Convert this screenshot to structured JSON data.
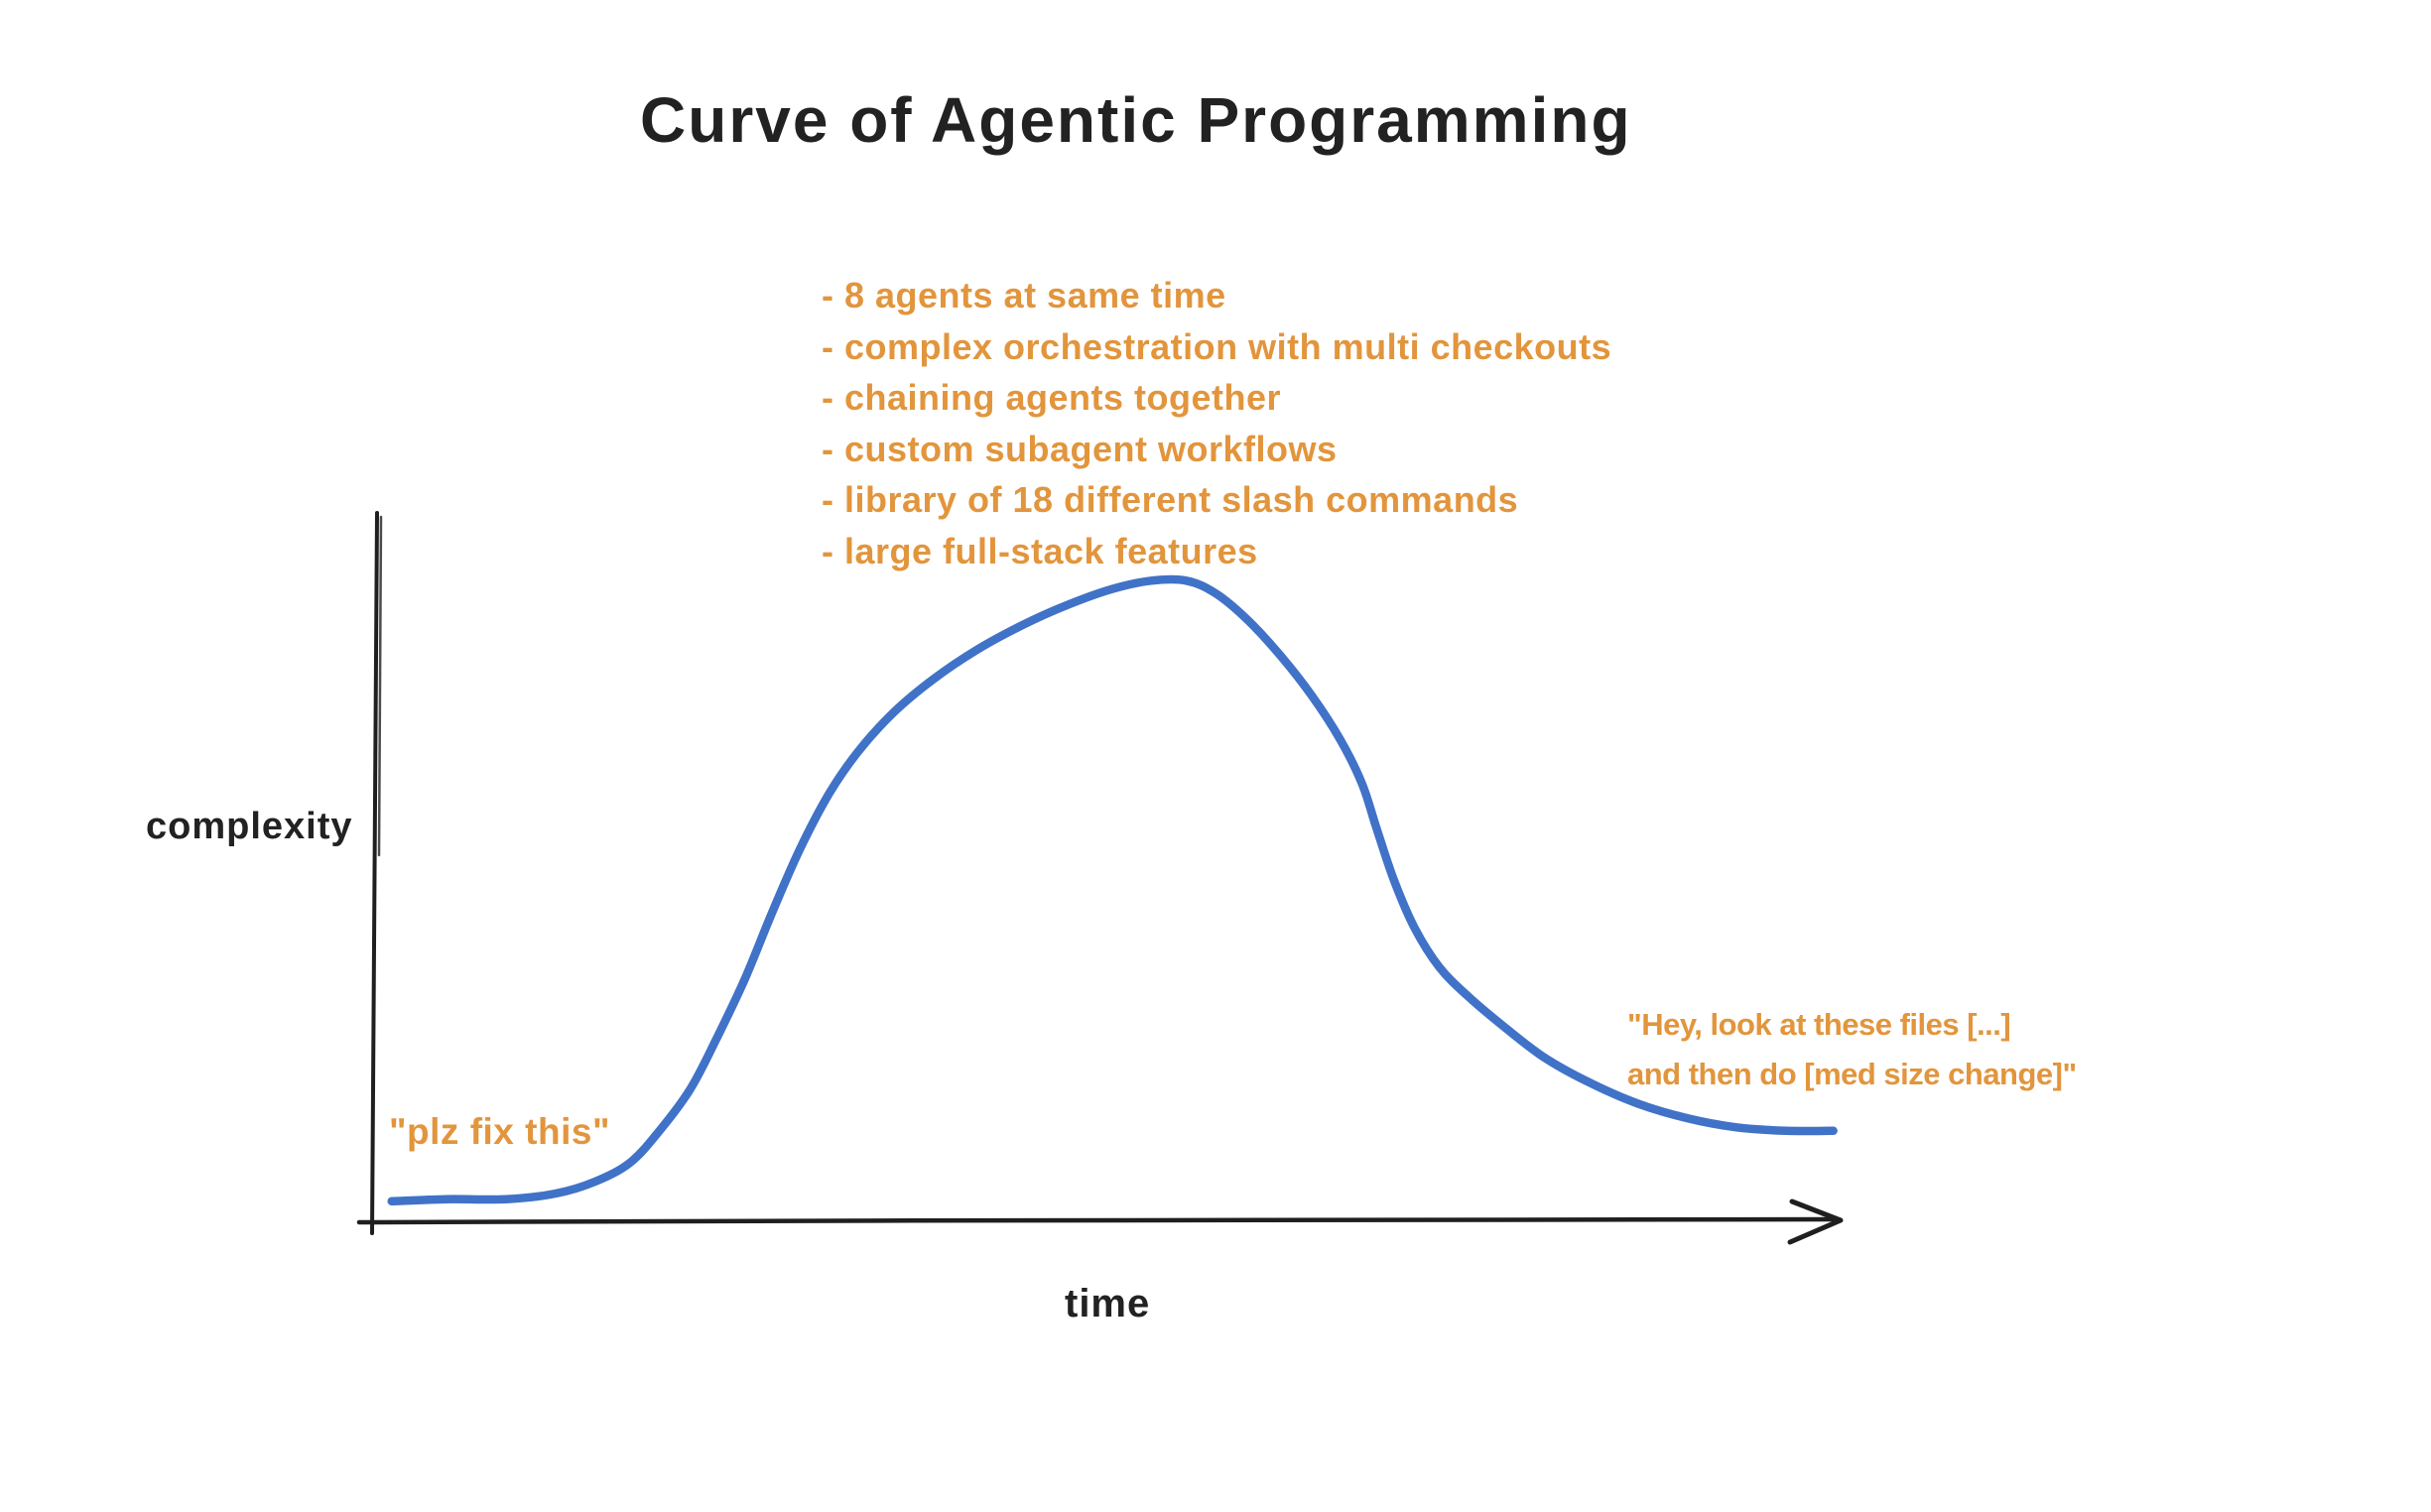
{
  "page": {
    "background": "#ffffff"
  },
  "chart_data": {
    "type": "line",
    "title": "Curve of Agentic Programming",
    "xlabel": "time",
    "ylabel": "complexity",
    "style": "hand-drawn sketch, no gridlines, no tick labels, qualitative axes",
    "legend": "none",
    "bullet": "-",
    "colors": {
      "curve": "#4072C8",
      "annotation": "#E2953C",
      "axis": "#1F1F1F",
      "text": "#222222"
    },
    "axes": {
      "x_ticks": [],
      "y_ticks": [],
      "x_arrow": true,
      "x_range_norm": [
        0,
        1
      ],
      "y_range_norm": [
        0,
        1
      ]
    },
    "peak_annotations": [
      "8 agents at same time",
      "complex orchestration with multi checkouts",
      "chaining agents together",
      "custom subagent workflows",
      "library of 18 different slash commands",
      "large full-stack features"
    ],
    "annotations": {
      "start_quote": "\"plz fix this\"",
      "end_quote_line1": "\"Hey, look at these files [...]",
      "end_quote_line2": "and then do [med size change]\""
    },
    "series": [
      {
        "name": "complexity over time",
        "color": "#4072C8",
        "points": [
          [
            0.012,
            0.027
          ],
          [
            0.049,
            0.03
          ],
          [
            0.09,
            0.03
          ],
          [
            0.124,
            0.038
          ],
          [
            0.151,
            0.055
          ],
          [
            0.175,
            0.082
          ],
          [
            0.195,
            0.127
          ],
          [
            0.216,
            0.186
          ],
          [
            0.234,
            0.258
          ],
          [
            0.253,
            0.341
          ],
          [
            0.272,
            0.437
          ],
          [
            0.291,
            0.527
          ],
          [
            0.311,
            0.606
          ],
          [
            0.331,
            0.666
          ],
          [
            0.355,
            0.721
          ],
          [
            0.382,
            0.768
          ],
          [
            0.412,
            0.81
          ],
          [
            0.443,
            0.845
          ],
          [
            0.473,
            0.873
          ],
          [
            0.504,
            0.896
          ],
          [
            0.531,
            0.908
          ],
          [
            0.555,
            0.908
          ],
          [
            0.575,
            0.89
          ],
          [
            0.597,
            0.852
          ],
          [
            0.62,
            0.8
          ],
          [
            0.641,
            0.744
          ],
          [
            0.66,
            0.683
          ],
          [
            0.675,
            0.62
          ],
          [
            0.685,
            0.556
          ],
          [
            0.697,
            0.482
          ],
          [
            0.711,
            0.415
          ],
          [
            0.728,
            0.359
          ],
          [
            0.748,
            0.317
          ],
          [
            0.772,
            0.275
          ],
          [
            0.799,
            0.232
          ],
          [
            0.829,
            0.197
          ],
          [
            0.863,
            0.166
          ],
          [
            0.897,
            0.145
          ],
          [
            0.931,
            0.132
          ],
          [
            0.965,
            0.127
          ],
          [
            0.997,
            0.127
          ]
        ]
      }
    ]
  }
}
